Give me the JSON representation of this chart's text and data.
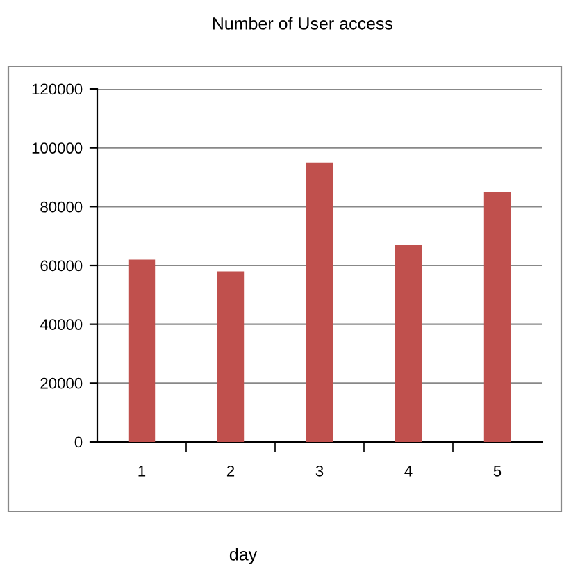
{
  "chart_data": {
    "type": "bar",
    "title": "Number of User access",
    "xlabel": "day",
    "categories": [
      "1",
      "2",
      "3",
      "4",
      "5"
    ],
    "values": [
      62000,
      58000,
      95000,
      67000,
      85000
    ],
    "color": "#c0504d",
    "ylim": [
      0,
      120000
    ],
    "yticks": [
      0,
      20000,
      40000,
      60000,
      80000,
      100000,
      120000
    ],
    "grid": "y",
    "legend": false
  }
}
